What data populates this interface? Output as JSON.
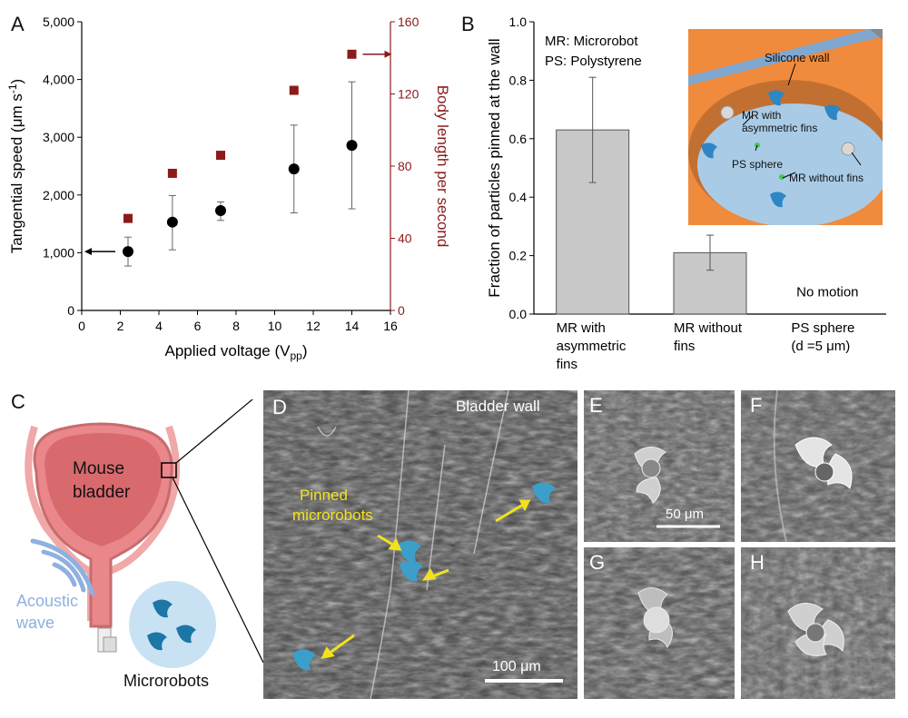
{
  "panels": {
    "a": "A",
    "b": "B",
    "c": "C",
    "d": "D",
    "e": "E",
    "f": "F",
    "g": "G",
    "h": "H"
  },
  "chart_a": {
    "type": "scatter",
    "xlabel": "Applied voltage (V",
    "xlabel_sub": "pp",
    "xlabel_end": ")",
    "ylabel_left": "Tangential speed (μm s",
    "ylabel_left_sup": "-1",
    "ylabel_left_end": ")",
    "ylabel_right": "Body length per second",
    "xticks": [
      "0",
      "2",
      "4",
      "6",
      "8",
      "10",
      "12",
      "14",
      "16"
    ],
    "yticks_left": [
      "0",
      "1,000",
      "2,000",
      "3,000",
      "4,000",
      "5,000"
    ],
    "yticks_right": [
      "0",
      "40",
      "80",
      "120",
      "160"
    ],
    "xlim": [
      0,
      16
    ],
    "ylim_left": [
      0,
      5000
    ],
    "ylim_right": [
      0,
      160
    ],
    "right_axis_color": "#8b1a1a",
    "series": [
      {
        "axis": "left",
        "marker": "circle",
        "color": "#000000",
        "x": [
          2.4,
          4.7,
          7.2,
          11,
          14
        ],
        "y": [
          1020,
          1530,
          1730,
          2450,
          2860
        ],
        "err_low": [
          250,
          480,
          170,
          760,
          1100
        ],
        "err_high": [
          250,
          460,
          150,
          760,
          1100
        ]
      },
      {
        "axis": "right",
        "marker": "square",
        "color": "#8b1a1a",
        "x": [
          2.4,
          4.7,
          7.2,
          11,
          14
        ],
        "y": [
          51,
          76,
          86,
          122,
          142
        ]
      }
    ]
  },
  "chart_b": {
    "type": "bar",
    "ylabel": "Fraction of particles pinned at the wall",
    "yticks": [
      "0.0",
      "0.2",
      "0.4",
      "0.6",
      "0.8",
      "1.0"
    ],
    "ylim": [
      0,
      1
    ],
    "categories": [
      [
        "MR with",
        "asymmetric",
        "fins"
      ],
      [
        "MR without",
        "fins"
      ],
      [
        "PS sphere",
        "(d =5 μm)"
      ]
    ],
    "values": [
      0.63,
      0.21,
      0
    ],
    "err": [
      0.18,
      0.06,
      0
    ],
    "bar_color": "#c8c8c8",
    "no_motion": "No motion",
    "legend1": "MR: Microrobot",
    "legend2": "PS: Polystyrene"
  },
  "inset_b": {
    "silicone_wall": "Silicone wall",
    "mr_with": [
      "MR with",
      "asymmetric fins"
    ],
    "ps_sphere": "PS sphere",
    "mr_without": "MR without fins",
    "orange": "#f08a3c",
    "blue": "#a9cbe6"
  },
  "panel_c": {
    "organ": [
      "Mouse",
      "bladder"
    ],
    "wave": [
      "Acoustic",
      "wave"
    ],
    "robots": "Microrobots",
    "organ_color": "#e9878a",
    "wave_color": "#8fb0e0"
  },
  "panel_d": {
    "title": "Bladder wall",
    "pinned": [
      "Pinned",
      "microrobots"
    ],
    "scale": "100 μm",
    "arrow_color": "#f2e21e",
    "robot_color": "#3b9fc9"
  },
  "panel_e": {
    "scale": "50 μm"
  }
}
